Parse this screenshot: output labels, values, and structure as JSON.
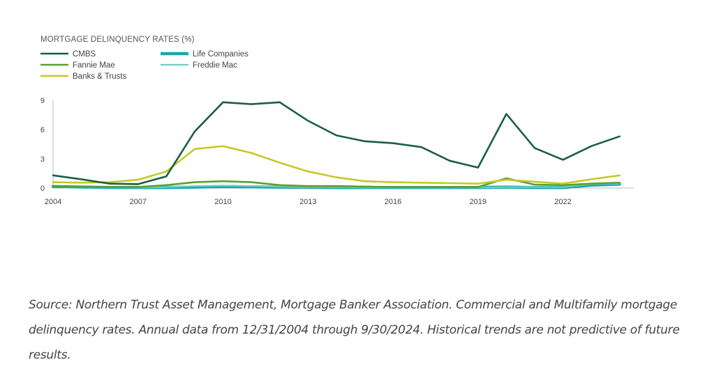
{
  "chart_data": {
    "type": "line",
    "title": "MORTGAGE DELINQUENCY RATES (%)",
    "xlabel": "",
    "ylabel": "",
    "x": [
      2004,
      2005,
      2006,
      2007,
      2008,
      2009,
      2010,
      2011,
      2012,
      2013,
      2014,
      2015,
      2016,
      2017,
      2018,
      2019,
      2020,
      2021,
      2022,
      2023,
      2024
    ],
    "xlim": [
      2004,
      2024.5
    ],
    "ylim": [
      0,
      9
    ],
    "x_ticks": [
      "2004",
      "2007",
      "2010",
      "2013",
      "2016",
      "2019",
      "2022"
    ],
    "y_ticks": [
      "0",
      "3",
      "6",
      "9"
    ],
    "grid": false,
    "legend_position": "top-left",
    "series": [
      {
        "name": "CMBS",
        "color": "#1b5e45",
        "stroke": 2.6,
        "values": [
          1.3,
          0.9,
          0.45,
          0.4,
          1.2,
          5.8,
          8.8,
          8.6,
          8.8,
          6.9,
          5.4,
          4.8,
          4.6,
          4.2,
          2.8,
          2.1,
          7.6,
          4.1,
          2.9,
          4.3,
          5.3
        ]
      },
      {
        "name": "Life Companies",
        "color": "#1aa5ae",
        "stroke": 4.5,
        "values": [
          0.15,
          0.1,
          0.05,
          0.05,
          0.05,
          0.1,
          0.15,
          0.12,
          0.1,
          0.08,
          0.05,
          0.05,
          0.05,
          0.05,
          0.05,
          0.05,
          0.1,
          0.05,
          0.05,
          0.3,
          0.4
        ]
      },
      {
        "name": "Fannie Mae",
        "color": "#5aa02c",
        "stroke": 2.6,
        "values": [
          0.1,
          0.1,
          0.1,
          0.1,
          0.3,
          0.6,
          0.7,
          0.6,
          0.3,
          0.2,
          0.2,
          0.15,
          0.1,
          0.1,
          0.1,
          0.1,
          1.0,
          0.35,
          0.3,
          0.45,
          0.55
        ]
      },
      {
        "name": "Freddie Mac",
        "color": "#6fcfc4",
        "stroke": 2.2,
        "values": [
          0.05,
          0.05,
          0.05,
          0.05,
          0.1,
          0.2,
          0.25,
          0.2,
          0.15,
          0.1,
          0.1,
          0.05,
          0.05,
          0.05,
          0.05,
          0.05,
          0.1,
          0.1,
          0.1,
          0.4,
          0.45
        ]
      },
      {
        "name": "Banks & Trusts",
        "color": "#c4c927",
        "stroke": 2.6,
        "values": [
          0.6,
          0.55,
          0.6,
          0.85,
          1.7,
          4.0,
          4.3,
          3.6,
          2.6,
          1.7,
          1.1,
          0.7,
          0.6,
          0.55,
          0.5,
          0.45,
          0.85,
          0.65,
          0.45,
          0.9,
          1.3
        ]
      }
    ]
  },
  "source_note": "Source: Northern Trust Asset Management, Mortgage Banker Association. Commercial and Multifamily mortgage delinquency rates. Annual data from 12/31/2004 through 9/30/2024. Historical trends are not predictive of future results."
}
